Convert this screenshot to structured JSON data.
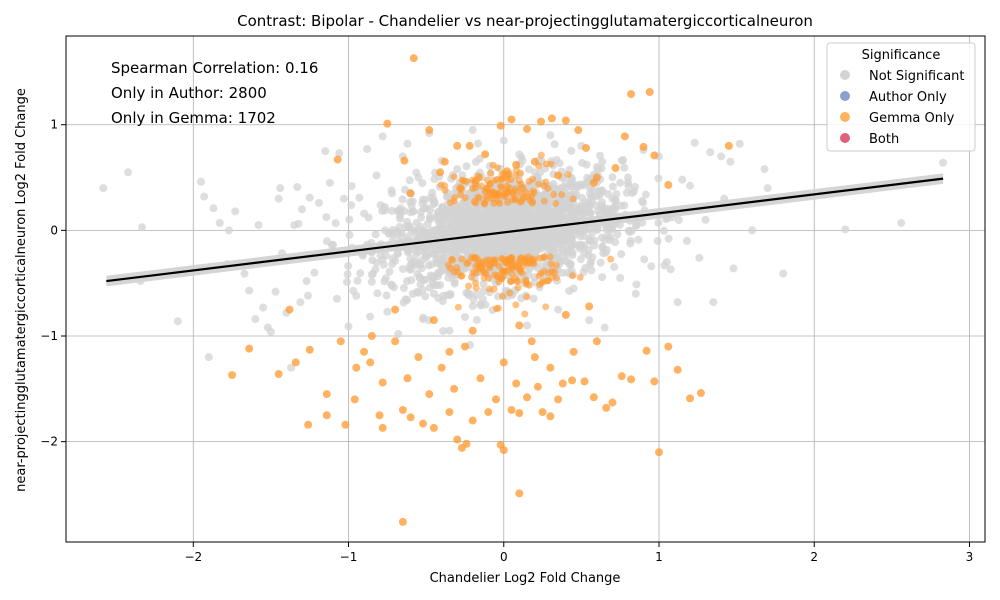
{
  "chart_data": {
    "type": "scatter",
    "title": "Contrast: Bipolar - Chandelier vs near-projectingglutamatergiccorticalneuron",
    "xlabel": "Chandelier Log2 Fold Change",
    "ylabel": "near-projectingglutamatergiccorticalneuron Log2 Fold Change",
    "xlim": [
      -2.82,
      3.1
    ],
    "ylim": [
      -2.95,
      1.84
    ],
    "xticks": [
      -2,
      -1,
      0,
      1,
      2,
      3
    ],
    "yticks": [
      -2,
      -1,
      0,
      1
    ],
    "grid": true,
    "annotations": [
      "Spearman Correlation: 0.16",
      "Only in Author: 2800",
      "Only in Gemma: 1702"
    ],
    "legend": {
      "title": "Significance",
      "placement": "top-right",
      "entries": [
        {
          "label": "Not Significant",
          "color": "#d3d3d3"
        },
        {
          "label": "Author Only",
          "color": "#8da0cb"
        },
        {
          "label": "Gemma Only",
          "color": "#ff9a2e"
        },
        {
          "label": "Both",
          "color": "#e06079"
        }
      ]
    },
    "regression": {
      "x": [
        -2.56,
        2.83
      ],
      "y": [
        -0.48,
        0.49
      ],
      "color": "#000000",
      "band_color": "#d0d0d0"
    },
    "series": [
      {
        "name": "Not Significant",
        "color": "#d3d3d3",
        "points": [
          [
            -2.58,
            0.4
          ],
          [
            -2.42,
            0.55
          ],
          [
            -2.33,
            0.03
          ],
          [
            -2.34,
            -0.48
          ],
          [
            -2.1,
            -0.86
          ],
          [
            -1.95,
            0.46
          ],
          [
            -1.93,
            0.32
          ],
          [
            -1.9,
            -1.2
          ],
          [
            -1.87,
            0.21
          ],
          [
            -1.83,
            0.07
          ],
          [
            -1.78,
            -0.32
          ],
          [
            -1.77,
            0.0
          ],
          [
            -1.73,
            0.18
          ],
          [
            -1.67,
            -0.41
          ],
          [
            -1.64,
            -0.57
          ],
          [
            -1.6,
            -0.84
          ],
          [
            -1.58,
            0.05
          ],
          [
            -1.55,
            -0.73
          ],
          [
            -1.52,
            -0.92
          ],
          [
            -1.5,
            -0.96
          ],
          [
            -1.47,
            -0.58
          ],
          [
            -1.45,
            0.3
          ],
          [
            -1.44,
            0.4
          ],
          [
            -1.4,
            -0.78
          ],
          [
            -1.37,
            -1.3
          ],
          [
            -1.35,
            0.05
          ],
          [
            -1.33,
            0.41
          ],
          [
            -1.31,
            -0.68
          ],
          [
            -1.3,
            0.2
          ],
          [
            -1.27,
            -0.48
          ],
          [
            -1.25,
            0.31
          ],
          [
            -1.22,
            -0.4
          ],
          [
            -1.19,
            0.26
          ],
          [
            -1.15,
            0.75
          ],
          [
            -1.12,
            0.45
          ],
          [
            -1.1,
            -0.22
          ],
          [
            -1.06,
            0.73
          ],
          [
            -1.03,
            0.3
          ],
          [
            -1.0,
            -0.91
          ],
          [
            -0.98,
            0.42
          ],
          [
            -0.95,
            -0.62
          ],
          [
            -0.9,
            0.16
          ],
          [
            -0.88,
            0.77
          ],
          [
            -0.85,
            -0.42
          ],
          [
            -0.82,
            0.52
          ],
          [
            -0.78,
            0.89
          ],
          [
            -0.75,
            -0.77
          ],
          [
            -0.72,
            0.35
          ],
          [
            -0.68,
            -0.98
          ],
          [
            -0.65,
            0.7
          ],
          [
            -0.62,
            0.82
          ],
          [
            -0.58,
            -0.3
          ],
          [
            -0.55,
            0.5
          ],
          [
            -0.52,
            -0.84
          ],
          [
            -0.48,
            0.92
          ],
          [
            -0.45,
            -0.6
          ],
          [
            -0.4,
            0.66
          ],
          [
            -0.35,
            -0.95
          ],
          [
            -0.3,
            0.58
          ],
          [
            -0.25,
            -0.82
          ],
          [
            -0.2,
            0.95
          ],
          [
            -0.15,
            -0.7
          ],
          [
            -0.1,
            0.4
          ],
          [
            -0.05,
            -0.5
          ],
          [
            0.0,
            0.85
          ],
          [
            0.05,
            -0.6
          ],
          [
            0.1,
            0.72
          ],
          [
            0.15,
            -0.9
          ],
          [
            0.2,
            0.55
          ],
          [
            0.25,
            -0.4
          ],
          [
            0.3,
            0.9
          ],
          [
            0.35,
            -0.75
          ],
          [
            0.4,
            0.45
          ],
          [
            0.45,
            -0.55
          ],
          [
            0.5,
            0.8
          ],
          [
            0.55,
            -0.85
          ],
          [
            0.6,
            0.6
          ],
          [
            0.65,
            -0.92
          ],
          [
            0.7,
            0.3
          ],
          [
            0.75,
            -0.45
          ],
          [
            0.8,
            0.5
          ],
          [
            0.85,
            -0.6
          ],
          [
            0.9,
            0.76
          ],
          [
            0.95,
            -0.34
          ],
          [
            1.0,
            0.7
          ],
          [
            1.05,
            -0.3
          ],
          [
            1.08,
            0.18
          ],
          [
            1.12,
            -0.68
          ],
          [
            1.15,
            0.48
          ],
          [
            1.18,
            -0.1
          ],
          [
            1.23,
            0.83
          ],
          [
            1.26,
            -0.26
          ],
          [
            1.3,
            0.1
          ],
          [
            1.33,
            0.74
          ],
          [
            1.35,
            -0.68
          ],
          [
            1.4,
            0.7
          ],
          [
            1.42,
            0.3
          ],
          [
            1.46,
            0.65
          ],
          [
            1.48,
            -0.36
          ],
          [
            1.52,
            0.82
          ],
          [
            1.56,
            0.27
          ],
          [
            1.6,
            0.0
          ],
          [
            1.68,
            0.58
          ],
          [
            1.7,
            0.4
          ],
          [
            1.8,
            -0.41
          ],
          [
            2.2,
            0.01
          ],
          [
            2.56,
            0.07
          ],
          [
            2.83,
            0.64
          ]
        ]
      },
      {
        "name": "Gemma Only",
        "color": "#ff9a2e",
        "points": [
          [
            -0.58,
            1.63
          ],
          [
            -0.75,
            1.01
          ],
          [
            -0.48,
            0.95
          ],
          [
            -1.07,
            0.67
          ],
          [
            -0.64,
            0.66
          ],
          [
            -0.38,
            0.65
          ],
          [
            -0.3,
            0.8
          ],
          [
            -0.22,
            0.8
          ],
          [
            -0.12,
            0.72
          ],
          [
            -0.02,
            0.99
          ],
          [
            0.05,
            1.05
          ],
          [
            0.08,
            0.62
          ],
          [
            0.15,
            0.96
          ],
          [
            0.24,
            1.03
          ],
          [
            0.31,
            1.06
          ],
          [
            0.4,
            1.04
          ],
          [
            0.48,
            0.95
          ],
          [
            0.53,
            0.78
          ],
          [
            0.6,
            0.5
          ],
          [
            0.72,
            0.59
          ],
          [
            0.78,
            0.89
          ],
          [
            0.82,
            1.29
          ],
          [
            0.9,
            0.79
          ],
          [
            0.94,
            1.31
          ],
          [
            0.97,
            0.71
          ],
          [
            1.06,
            0.43
          ],
          [
            1.45,
            0.8
          ],
          [
            -0.41,
            0.55
          ],
          [
            -0.18,
            0.47
          ],
          [
            0.02,
            0.56
          ],
          [
            0.2,
            0.65
          ],
          [
            0.35,
            0.52
          ],
          [
            0.58,
            0.45
          ],
          [
            -0.6,
            0.35
          ],
          [
            -0.28,
            0.4
          ],
          [
            0.12,
            0.4
          ],
          [
            -0.78,
            -1.44
          ],
          [
            -1.25,
            -1.13
          ],
          [
            -1.34,
            -1.25
          ],
          [
            -1.64,
            -1.12
          ],
          [
            -1.75,
            -1.37
          ],
          [
            -1.45,
            -1.36
          ],
          [
            -1.14,
            -1.55
          ],
          [
            -1.14,
            -1.75
          ],
          [
            -1.26,
            -1.84
          ],
          [
            -1.02,
            -1.84
          ],
          [
            -0.96,
            -1.6
          ],
          [
            -0.86,
            -1.25
          ],
          [
            -0.8,
            -1.75
          ],
          [
            -0.78,
            -1.87
          ],
          [
            -0.65,
            -1.7
          ],
          [
            -0.6,
            -1.77
          ],
          [
            -0.52,
            -1.83
          ],
          [
            -0.45,
            -1.87
          ],
          [
            -0.35,
            -1.72
          ],
          [
            -0.3,
            -1.98
          ],
          [
            -0.27,
            -2.06
          ],
          [
            -0.24,
            -2.02
          ],
          [
            -0.2,
            -1.8
          ],
          [
            -0.1,
            -1.72
          ],
          [
            -0.02,
            -2.03
          ],
          [
            0.0,
            -2.08
          ],
          [
            0.05,
            -1.7
          ],
          [
            0.1,
            -1.73
          ],
          [
            0.15,
            -1.58
          ],
          [
            0.22,
            -1.48
          ],
          [
            0.25,
            -1.72
          ],
          [
            0.3,
            -1.76
          ],
          [
            0.38,
            -1.45
          ],
          [
            0.44,
            -1.42
          ],
          [
            0.52,
            -1.43
          ],
          [
            0.58,
            -1.58
          ],
          [
            0.66,
            -1.68
          ],
          [
            0.7,
            -1.63
          ],
          [
            0.76,
            -1.38
          ],
          [
            0.82,
            -1.41
          ],
          [
            0.92,
            -1.14
          ],
          [
            0.97,
            -1.43
          ],
          [
            1.06,
            -1.1
          ],
          [
            1.12,
            -1.32
          ],
          [
            1.2,
            -1.59
          ],
          [
            1.27,
            -1.54
          ],
          [
            1.0,
            -2.1
          ],
          [
            0.1,
            -2.49
          ],
          [
            -0.65,
            -2.76
          ],
          [
            -0.9,
            -1.15
          ],
          [
            -0.7,
            -1.05
          ],
          [
            -0.55,
            -1.2
          ],
          [
            -0.4,
            -1.3
          ],
          [
            -0.25,
            -1.1
          ],
          [
            -0.15,
            -1.4
          ],
          [
            0.0,
            -1.25
          ],
          [
            0.18,
            -1.05
          ],
          [
            0.3,
            -1.3
          ],
          [
            0.45,
            -1.15
          ],
          [
            0.6,
            -1.05
          ],
          [
            -1.05,
            -1.05
          ],
          [
            -0.95,
            -1.3
          ],
          [
            -0.62,
            -1.4
          ],
          [
            -0.48,
            -1.55
          ],
          [
            -0.32,
            -1.5
          ],
          [
            -0.05,
            -1.6
          ],
          [
            0.08,
            -1.45
          ],
          [
            0.35,
            -1.6
          ],
          [
            -0.7,
            -0.75
          ],
          [
            -0.45,
            -0.85
          ],
          [
            -0.2,
            -0.95
          ],
          [
            0.1,
            -0.9
          ],
          [
            0.4,
            -0.8
          ],
          [
            0.55,
            -0.72
          ],
          [
            -0.35,
            -1.15
          ],
          [
            0.2,
            -1.2
          ],
          [
            -1.38,
            -0.75
          ],
          [
            -0.85,
            -1.0
          ]
        ]
      }
    ]
  }
}
